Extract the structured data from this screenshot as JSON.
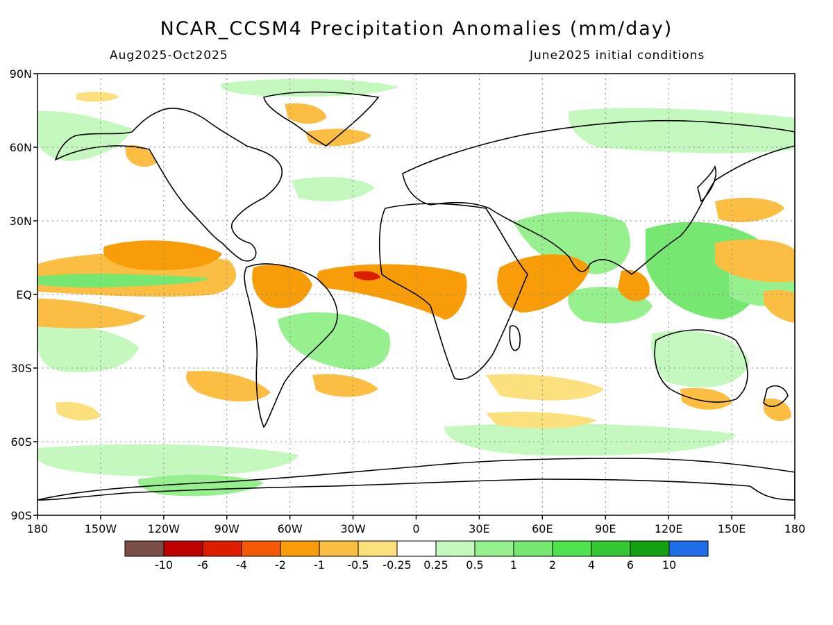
{
  "title": "NCAR_CCSM4 Precipitation Anomalies (mm/day)",
  "period": "Aug2025-Oct2025",
  "init": "June2025 initial conditions",
  "axes": {
    "lat_labels": [
      "90N",
      "60N",
      "30N",
      "EQ",
      "30S",
      "60S",
      "90S"
    ],
    "lon_labels": [
      "180",
      "150W",
      "120W",
      "90W",
      "60W",
      "30W",
      "0",
      "30E",
      "60E",
      "90E",
      "120E",
      "150E",
      "180"
    ]
  },
  "colorbar": {
    "colors": [
      "#7a4e46",
      "#bd0000",
      "#dd1d00",
      "#f45a05",
      "#f89c08",
      "#fbbd42",
      "#fde07e",
      "#ffffff",
      "#c4f8be",
      "#96f08d",
      "#76e872",
      "#4ee34c",
      "#33c833",
      "#13a013",
      "#1e6ee8"
    ],
    "labels": [
      "-10",
      "-6",
      "-4",
      "-2",
      "-1",
      "-0.5",
      "-0.25",
      "0.25",
      "0.5",
      "1",
      "2",
      "4",
      "6",
      "10"
    ]
  },
  "colors": {
    "dry_strong": "#dd1d00",
    "dry_mid": "#f89c08",
    "dry_light": "#fde07e",
    "wet_light": "#c4f8be",
    "wet_mid": "#76e872",
    "wet_strong": "#33c833"
  }
}
